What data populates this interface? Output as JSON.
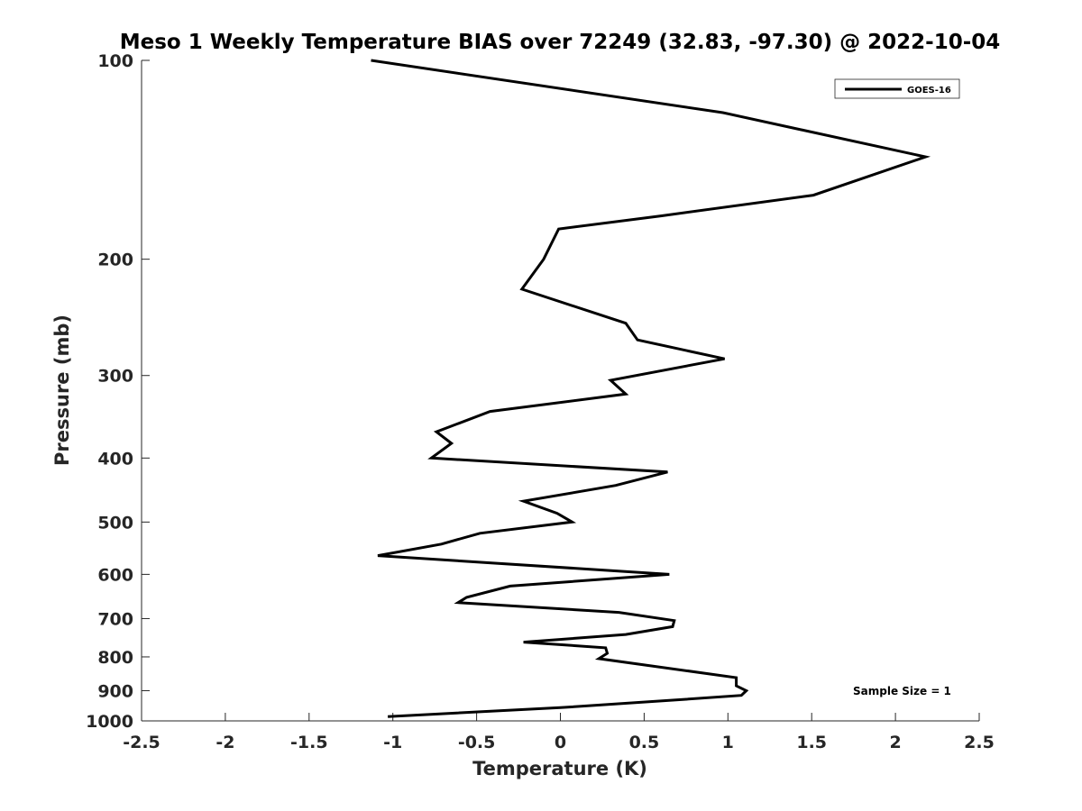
{
  "chart_data": {
    "type": "line",
    "title": "Meso 1 Weekly Temperature BIAS over 72249 (32.83, -97.30) @ 2022-10-04",
    "xlabel": "Temperature (K)",
    "ylabel": "Pressure (mb)",
    "xlim": [
      -2.5,
      2.5
    ],
    "ylim": [
      1000,
      100
    ],
    "yscale": "log",
    "y_reversed": true,
    "grid": false,
    "legend_position": "top-right",
    "x_ticks": [
      -2.5,
      -2,
      -1.5,
      -1,
      -0.5,
      0,
      0.5,
      1,
      1.5,
      2,
      2.5
    ],
    "x_tick_labels": [
      "-2.5",
      "-2",
      "-1.5",
      "-1",
      "-0.5",
      "0",
      "0.5",
      "1",
      "1.5",
      "2",
      "2.5"
    ],
    "y_ticks": [
      100,
      200,
      300,
      400,
      500,
      600,
      700,
      800,
      900,
      1000
    ],
    "y_tick_labels": [
      "100",
      "200",
      "300",
      "400",
      "500",
      "600",
      "700",
      "800",
      "900",
      "1000"
    ],
    "series": [
      {
        "name": "GOES-16",
        "color": "#000000",
        "points": [
          {
            "x": -1.13,
            "y": 100
          },
          {
            "x": 0.97,
            "y": 120
          },
          {
            "x": 2.18,
            "y": 140
          },
          {
            "x": 1.51,
            "y": 160
          },
          {
            "x": 0.6,
            "y": 172
          },
          {
            "x": -0.01,
            "y": 180
          },
          {
            "x": -0.1,
            "y": 200
          },
          {
            "x": -0.23,
            "y": 222
          },
          {
            "x": 0.39,
            "y": 250
          },
          {
            "x": 0.46,
            "y": 265
          },
          {
            "x": 0.98,
            "y": 283
          },
          {
            "x": 0.3,
            "y": 305
          },
          {
            "x": 0.39,
            "y": 320
          },
          {
            "x": -0.42,
            "y": 340
          },
          {
            "x": -0.74,
            "y": 365
          },
          {
            "x": -0.65,
            "y": 380
          },
          {
            "x": -0.77,
            "y": 400
          },
          {
            "x": 0.64,
            "y": 420
          },
          {
            "x": 0.33,
            "y": 440
          },
          {
            "x": -0.22,
            "y": 465
          },
          {
            "x": -0.02,
            "y": 485
          },
          {
            "x": 0.07,
            "y": 500
          },
          {
            "x": -0.48,
            "y": 520
          },
          {
            "x": -0.71,
            "y": 540
          },
          {
            "x": -1.09,
            "y": 562
          },
          {
            "x": 0.65,
            "y": 600
          },
          {
            "x": -0.3,
            "y": 625
          },
          {
            "x": -0.56,
            "y": 650
          },
          {
            "x": -0.61,
            "y": 662
          },
          {
            "x": 0.35,
            "y": 685
          },
          {
            "x": 0.68,
            "y": 705
          },
          {
            "x": 0.67,
            "y": 720
          },
          {
            "x": 0.39,
            "y": 740
          },
          {
            "x": -0.22,
            "y": 760
          },
          {
            "x": 0.27,
            "y": 775
          },
          {
            "x": 0.28,
            "y": 790
          },
          {
            "x": 0.23,
            "y": 805
          },
          {
            "x": 1.05,
            "y": 860
          },
          {
            "x": 1.05,
            "y": 885
          },
          {
            "x": 1.11,
            "y": 900
          },
          {
            "x": 1.08,
            "y": 915
          },
          {
            "x": 0.68,
            "y": 930
          },
          {
            "x": 0.0,
            "y": 955
          },
          {
            "x": -1.03,
            "y": 985
          }
        ]
      }
    ],
    "annotations": [
      {
        "text": "Sample Size = 1",
        "position": "bottom-right"
      }
    ]
  }
}
